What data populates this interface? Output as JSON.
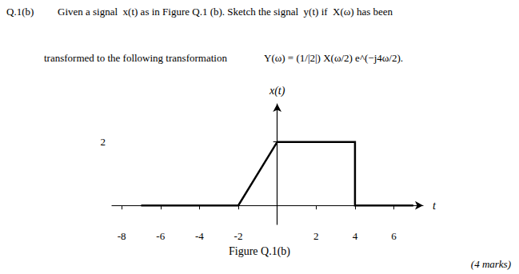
{
  "chart_data": {
    "type": "line",
    "title": "Figure Q.1(b)",
    "annotations": [
      "Q.1(b)",
      "Given a signal  x(t) as in Figure Q.1 (b). Sketch the signal  y(t) if  X(ω) has been",
      "transformed to the following transformation",
      "Y(ω) = (1/|2|) X(ω/2) e^(−j4ω/2).",
      "(4 marks)"
    ],
    "xlabel": "t",
    "ylabel": "x(t)",
    "x": [
      -7,
      -2,
      0,
      4,
      4,
      7
    ],
    "values": [
      0,
      0,
      2,
      2,
      0,
      0
    ],
    "color": "#000000",
    "xlim": [
      -8.5,
      7.5
    ],
    "xticks": [
      -8,
      -6,
      -4,
      -2,
      2,
      4,
      6
    ],
    "ylim": [
      -0.6,
      3.2
    ],
    "yticks": [
      2
    ],
    "grid": false
  }
}
